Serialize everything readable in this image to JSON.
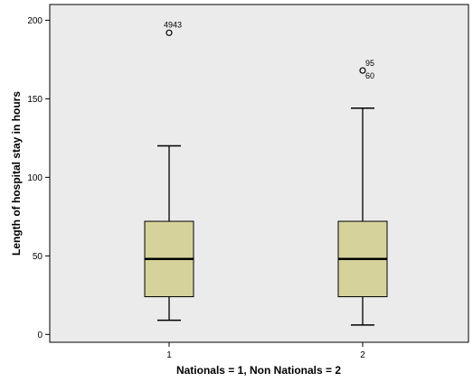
{
  "chart_data": {
    "type": "boxplot",
    "xlabel": "Nationals = 1, Non Nationals = 2",
    "ylabel": "Length of hospital stay in hours",
    "ylim": [
      -5,
      210
    ],
    "yticks": [
      0,
      50,
      100,
      150,
      200
    ],
    "grid": false,
    "background": "#ebebeb",
    "box_fill": "#d6d29b",
    "categories": [
      "1",
      "2"
    ],
    "boxes": [
      {
        "category": "1",
        "whisker_low": 9,
        "q1": 24,
        "median": 48,
        "q3": 72,
        "whisker_high": 120,
        "outliers": [
          {
            "value": 192,
            "label": "4943"
          }
        ]
      },
      {
        "category": "2",
        "whisker_low": 6,
        "q1": 24,
        "median": 48,
        "q3": 72,
        "whisker_high": 144,
        "outliers": [
          {
            "value": 168,
            "labels": [
              "95",
              "60"
            ]
          }
        ]
      }
    ]
  }
}
